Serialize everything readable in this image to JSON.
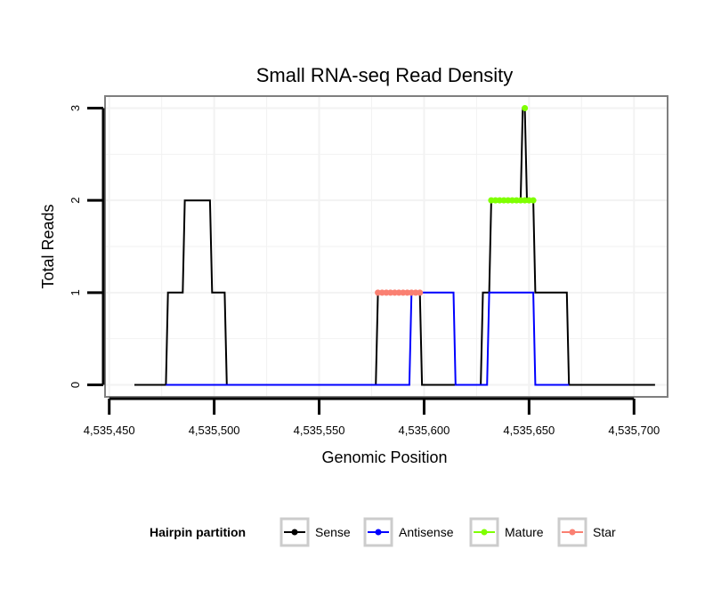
{
  "chart_data": {
    "type": "line",
    "title": "Small RNA-seq Read Density",
    "xlabel": "Genomic Position",
    "ylabel": "Total Reads",
    "xlim": [
      4535448,
      4535716
    ],
    "ylim": [
      -0.13,
      3.13
    ],
    "x_ticks": [
      4535450,
      4535500,
      4535550,
      4535600,
      4535650,
      4535700
    ],
    "x_tick_labels": [
      "4,535,450",
      "4,535,500",
      "4,535,550",
      "4,535,600",
      "4,535,650",
      "4,535,700"
    ],
    "y_ticks": [
      0,
      1,
      2,
      3
    ],
    "y_tick_labels": [
      "0",
      "1",
      "2",
      "3"
    ],
    "grid": true,
    "legend": {
      "title": "Hairpin partition",
      "position": "bottom",
      "entries": [
        {
          "name": "Sense",
          "color": "#000000"
        },
        {
          "name": "Antisense",
          "color": "#0000FF"
        },
        {
          "name": "Mature",
          "color": "#7FFF00"
        },
        {
          "name": "Star",
          "color": "#FA8072"
        }
      ]
    },
    "series": [
      {
        "name": "Sense",
        "color": "#000000",
        "kind": "line",
        "x": [
          4535462,
          4535477,
          4535478,
          4535485,
          4535486,
          4535498,
          4535499,
          4535505,
          4535506,
          4535577,
          4535578,
          4535598,
          4535599,
          4535627,
          4535628,
          4535631,
          4535632,
          4535646,
          4535647,
          4535648,
          4535649,
          4535652,
          4535653,
          4535668,
          4535669,
          4535710
        ],
        "values": [
          0,
          0,
          1,
          1,
          2,
          2,
          1,
          1,
          0,
          0,
          1,
          1,
          0,
          0,
          1,
          1,
          2,
          2,
          3,
          3,
          2,
          2,
          1,
          1,
          0,
          0
        ]
      },
      {
        "name": "Antisense",
        "color": "#0000FF",
        "kind": "line",
        "x": [
          4535477,
          4535593,
          4535594,
          4535614,
          4535615,
          4535630,
          4535631,
          4535652,
          4535653,
          4535669
        ],
        "values": [
          0,
          0,
          1,
          1,
          0,
          0,
          1,
          1,
          0,
          0
        ]
      },
      {
        "name": "Mature",
        "color": "#7FFF00",
        "kind": "points",
        "x": [
          4535632,
          4535634,
          4535636,
          4535638,
          4535640,
          4535642,
          4535644,
          4535646,
          4535648,
          4535650,
          4535652,
          4535648
        ],
        "values": [
          2,
          2,
          2,
          2,
          2,
          2,
          2,
          2,
          2,
          2,
          2,
          3
        ]
      },
      {
        "name": "Star",
        "color": "#FA8072",
        "kind": "points",
        "x": [
          4535578,
          4535580,
          4535582,
          4535584,
          4535586,
          4535588,
          4535590,
          4535592,
          4535594,
          4535596,
          4535598
        ],
        "values": [
          1,
          1,
          1,
          1,
          1,
          1,
          1,
          1,
          1,
          1,
          1
        ]
      }
    ]
  }
}
